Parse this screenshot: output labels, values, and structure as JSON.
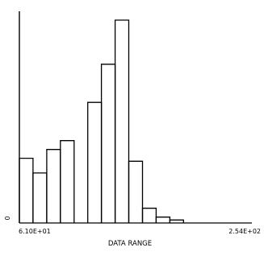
{
  "chart_data": {
    "type": "bar",
    "title": "",
    "xlabel": "DATA RANGE",
    "ylabel": "",
    "x_tick_labels": [
      "6.10E+01",
      "2.54E+02"
    ],
    "y_tick_labels": [
      "0"
    ],
    "values": [
      22,
      17,
      25,
      28,
      0,
      41,
      54,
      69,
      21,
      5,
      2,
      1,
      0,
      0,
      0,
      0,
      0
    ],
    "ylim": [
      0,
      72
    ],
    "grid": false,
    "colors": {
      "stroke": "#000000",
      "background": "#ffffff"
    }
  }
}
